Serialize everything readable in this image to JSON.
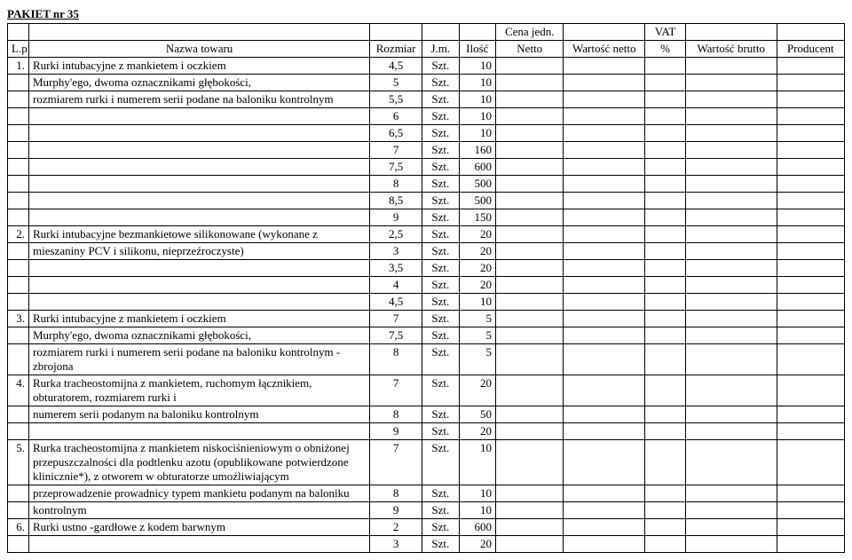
{
  "title": "PAKIET nr 35",
  "headers": {
    "lp": "L.p.",
    "name": "Nazwa towaru",
    "size": "Rozmiar",
    "unit": "J.m.",
    "qty": "Ilość",
    "price_top": "Cena jedn.",
    "price_bot": "Netto",
    "netval": "Wartość netto",
    "vat_top": "VAT",
    "vat_bot": "%",
    "gross": "Wartość brutto",
    "prod": "Producent"
  },
  "rows": [
    {
      "lp": "1.",
      "name": "Rurki intubacyjne z mankietem i oczkiem",
      "size": "4,5",
      "unit": "Szt.",
      "qty": "10"
    },
    {
      "name": "Murphy'ego, dwoma oznacznikami głębokości,",
      "size": "5",
      "unit": "Szt.",
      "qty": "10"
    },
    {
      "name": "rozmiarem rurki i numerem serii podane na baloniku kontrolnym",
      "size": "5,5",
      "unit": "Szt.",
      "qty": "10"
    },
    {
      "size": "6",
      "unit": "Szt.",
      "qty": "10"
    },
    {
      "size": "6,5",
      "unit": "Szt.",
      "qty": "10"
    },
    {
      "size": "7",
      "unit": "Szt.",
      "qty": "160"
    },
    {
      "size": "7,5",
      "unit": "Szt.",
      "qty": "600"
    },
    {
      "size": "8",
      "unit": "Szt.",
      "qty": "500"
    },
    {
      "size": "8,5",
      "unit": "Szt.",
      "qty": "500"
    },
    {
      "size": "9",
      "unit": "Szt.",
      "qty": "150"
    },
    {
      "lp": "2.",
      "name": "Rurki intubacyjne bezmankietowe silikonowane (wykonane z",
      "size": "2,5",
      "unit": "Szt.",
      "qty": "20"
    },
    {
      "name": "mieszaniny PCV i silikonu, nieprzeźroczyste)",
      "size": "3",
      "unit": "Szt.",
      "qty": "20"
    },
    {
      "size": "3,5",
      "unit": "Szt.",
      "qty": "20"
    },
    {
      "size": "4",
      "unit": "Szt.",
      "qty": "20"
    },
    {
      "size": "4,5",
      "unit": "Szt.",
      "qty": "10"
    },
    {
      "lp": "3.",
      "name": "Rurki intubacyjne z mankietem i oczkiem",
      "size": "7",
      "unit": "Szt.",
      "qty": "5"
    },
    {
      "name": "Murphy'ego, dwoma oznacznikami głębokości,",
      "size": "7,5",
      "unit": "Szt.",
      "qty": "5"
    },
    {
      "name": "rozmiarem rurki i numerem serii podane na baloniku kontrolnym - zbrojona",
      "size": "8",
      "unit": "Szt.",
      "qty": "5"
    },
    {
      "lp": "4.",
      "name": "Rurka tracheostomijna z mankietem, ruchomym łącznikiem, obturatorem, rozmiarem rurki i",
      "size": "7",
      "unit": "Szt.",
      "qty": "20"
    },
    {
      "name": "numerem serii podanym na baloniku kontrolnym",
      "size": "8",
      "unit": "Szt.",
      "qty": "50"
    },
    {
      "size": "9",
      "unit": "Szt.",
      "qty": "20"
    },
    {
      "lp": "5.",
      "name": "Rurka tracheostomijna z mankietem niskociśnieniowym o obniżonej przepuszczalności dla podtlenku azotu (opublikowane potwierdzone klinicznie*), z otworem w obturatorze umożliwiającym",
      "size": "7",
      "unit": "Szt.",
      "qty": "10"
    },
    {
      "name": "przeprowadzenie prowadnicy typem mankietu podanym na baloniku",
      "size": "8",
      "unit": "Szt.",
      "qty": "10"
    },
    {
      "name": "kontrolnym",
      "size": "9",
      "unit": "Szt.",
      "qty": "10"
    },
    {
      "lp": "6.",
      "name": "Rurki ustno -gardłowe z kodem barwnym",
      "size": "2",
      "unit": "Szt.",
      "qty": "600"
    },
    {
      "size": "3",
      "unit": "Szt.",
      "qty": "20"
    }
  ]
}
